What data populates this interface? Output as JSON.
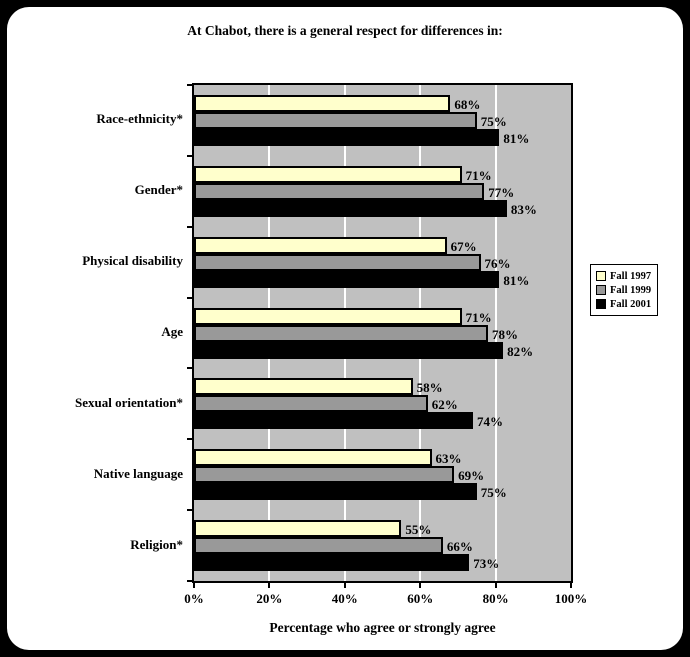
{
  "title": "At Chabot, there is a general respect for differences in:",
  "chart_data": {
    "type": "bar",
    "orientation": "horizontal",
    "title": "At Chabot, there is a general respect for differences in:",
    "categories": [
      "Race-ethnicity*",
      "Gender*",
      "Physical disability",
      "Age",
      "Sexual orientation*",
      "Native language",
      "Religion*"
    ],
    "series": [
      {
        "name": "Fall 1997",
        "color": "#FFFFCC",
        "values": [
          68,
          71,
          67,
          71,
          58,
          63,
          55
        ]
      },
      {
        "name": "Fall 1999",
        "color": "#999999",
        "values": [
          75,
          77,
          76,
          78,
          62,
          69,
          66
        ]
      },
      {
        "name": "Fall 2001",
        "color": "#000000",
        "values": [
          81,
          83,
          81,
          82,
          74,
          75,
          73
        ]
      }
    ],
    "xlabel": "Percentage who agree or strongly agree",
    "x_ticks": [
      "0%",
      "20%",
      "40%",
      "60%",
      "80%",
      "100%"
    ],
    "xlim": [
      0,
      100
    ],
    "data_label_format": "{v}%",
    "plot_bg": "#C0C0C0",
    "gridline_color": "#FFFFFF",
    "grid": "vertical-only",
    "legend_position": "right"
  }
}
